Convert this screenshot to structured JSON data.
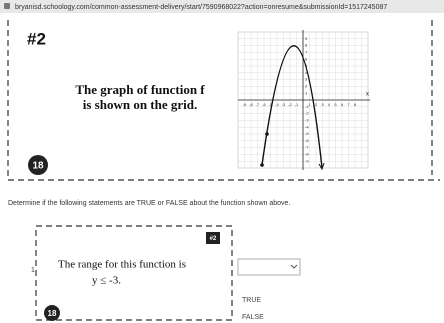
{
  "browser": {
    "url": "bryanisd.schoology.com/common-assessment-delivery/start/7590968022?action=onresume&submissionId=1517245087"
  },
  "question": {
    "number": "#2",
    "prompt_lines": [
      "The graph of function f",
      "is shown on the grid."
    ],
    "badge": "18",
    "graph": {
      "x_axis_label": "x",
      "x_ticks": [
        -9,
        -8,
        -7,
        -6,
        -5,
        -4,
        -3,
        -2,
        -1,
        1,
        2,
        3,
        4,
        5,
        6,
        7,
        8
      ],
      "y_ticks": [
        9,
        8,
        7,
        6,
        5,
        4,
        3,
        2,
        1,
        -1,
        -2,
        -3,
        -4,
        -5,
        -6,
        -7,
        -8,
        -9
      ]
    }
  },
  "instructions": "Determine if the following statements are TRUE or FALSE about the function shown above.",
  "statement": {
    "number": "#2",
    "item": "1",
    "text_lines": [
      "The range for this function is",
      "y ≤ -3."
    ],
    "badge": "18",
    "dropdown": {
      "options": [
        "TRUE",
        "FALSE"
      ]
    }
  }
}
